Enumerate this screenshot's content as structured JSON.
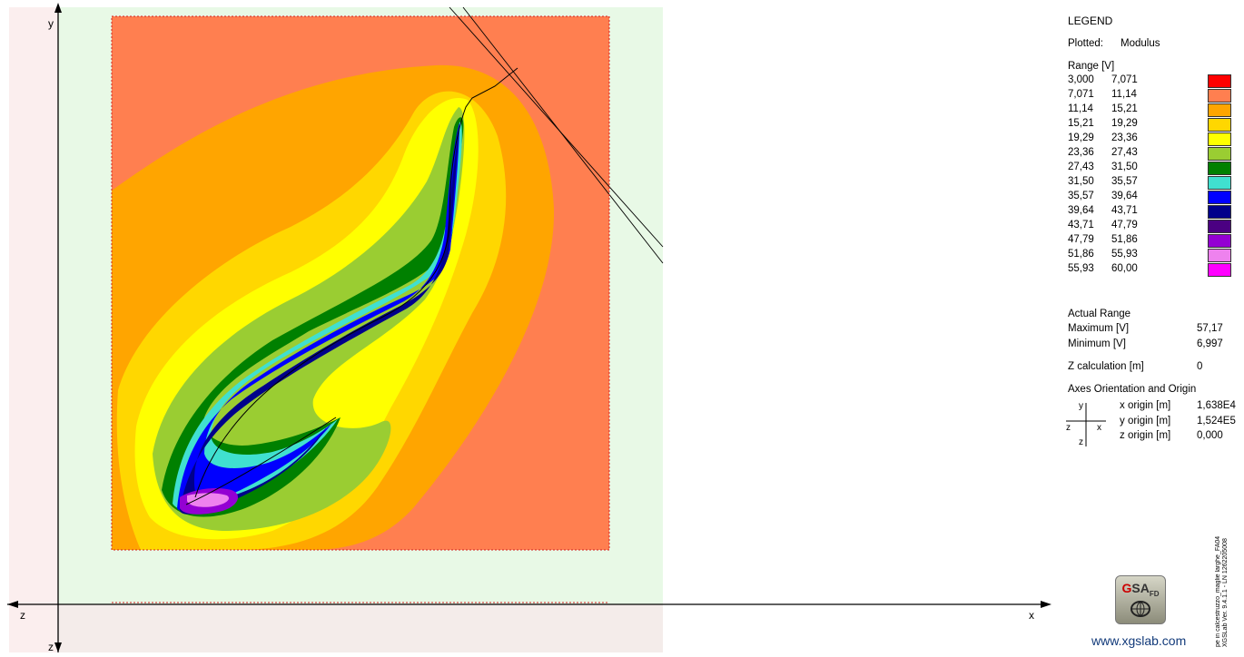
{
  "axes": {
    "y_label": "y",
    "z_label_top": "z",
    "x_label": "x",
    "z_label_bottom": "z"
  },
  "legend": {
    "title": "LEGEND",
    "plotted_label": "Plotted:",
    "plotted_value": "Modulus",
    "range_header": "Range [V]",
    "ranges": [
      {
        "lo": "3,000",
        "hi": "7,071",
        "color": "#ff0000"
      },
      {
        "lo": "7,071",
        "hi": "11,14",
        "color": "#ff7f50"
      },
      {
        "lo": "11,14",
        "hi": "15,21",
        "color": "#ffa500"
      },
      {
        "lo": "15,21",
        "hi": "19,29",
        "color": "#ffd700"
      },
      {
        "lo": "19,29",
        "hi": "23,36",
        "color": "#ffff00"
      },
      {
        "lo": "23,36",
        "hi": "27,43",
        "color": "#9acd32"
      },
      {
        "lo": "27,43",
        "hi": "31,50",
        "color": "#008000"
      },
      {
        "lo": "31,50",
        "hi": "35,57",
        "color": "#40e0d0"
      },
      {
        "lo": "35,57",
        "hi": "39,64",
        "color": "#0000ff"
      },
      {
        "lo": "39,64",
        "hi": "43,71",
        "color": "#00008b"
      },
      {
        "lo": "43,71",
        "hi": "47,79",
        "color": "#4b0082"
      },
      {
        "lo": "47,79",
        "hi": "51,86",
        "color": "#9400d3"
      },
      {
        "lo": "51,86",
        "hi": "55,93",
        "color": "#ee82ee"
      },
      {
        "lo": "55,93",
        "hi": "60,00",
        "color": "#ff00ff"
      }
    ],
    "actual_range_header": "Actual Range",
    "maximum_label": "Maximum [V]",
    "maximum_value": "57,17",
    "minimum_label": "Minimum [V]",
    "minimum_value": "6,997",
    "zcalc_label": "Z calculation [m]",
    "zcalc_value": "0",
    "axes_header": "Axes Orientation and Origin",
    "mini_axes": {
      "y": "y",
      "z": "z",
      "x": "x",
      "z2": "z"
    },
    "origins": [
      {
        "label": "x origin [m]",
        "value": "1,638E4"
      },
      {
        "label": "y origin [m]",
        "value": "1,524E5"
      },
      {
        "label": "z origin [m]",
        "value": "0,000"
      }
    ]
  },
  "logo": {
    "brand_g": "G",
    "brand_rest": "SA",
    "brand_sub": "FD",
    "url": "www.xgslab.com"
  },
  "vertical_text": {
    "line1": "pe in calcestruzzo_maglie larghe_FA04",
    "line2": "XGSLab Ver. 9.4.1.1 - LN 1262205008"
  }
}
